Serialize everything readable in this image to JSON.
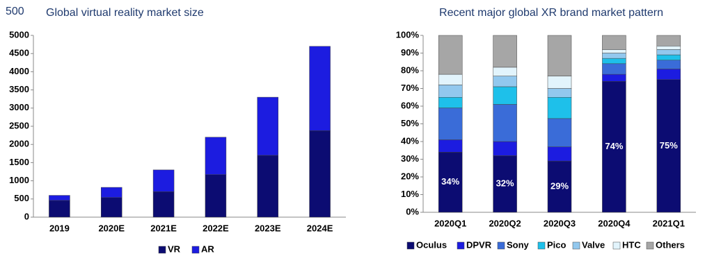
{
  "corner_label": "500",
  "chart_data": [
    {
      "type": "bar",
      "stacked": true,
      "title": "Global virtual reality market size",
      "categories": [
        "2019",
        "2020E",
        "2021E",
        "2022E",
        "2023E",
        "2024E"
      ],
      "series": [
        {
          "name": "VR",
          "color": "#0c0c72",
          "values": [
            460,
            540,
            700,
            1170,
            1700,
            2380
          ]
        },
        {
          "name": "AR",
          "color": "#1c1ce0",
          "values": [
            140,
            280,
            600,
            1030,
            1600,
            2320
          ]
        }
      ],
      "ylim": [
        0,
        5000
      ],
      "yticks": [
        0,
        500,
        1000,
        1500,
        2000,
        2500,
        3000,
        3500,
        4000,
        4500,
        5000
      ],
      "legend": "bottom"
    },
    {
      "type": "bar",
      "stacked": true,
      "title": "Recent major global XR brand market pattern",
      "categories": [
        "2020Q1",
        "2020Q2",
        "2020Q3",
        "2020Q4",
        "2021Q1"
      ],
      "series": [
        {
          "name": "Oculus",
          "color": "#0c0c72",
          "values": [
            34,
            32,
            29,
            74,
            75
          ],
          "value_labels": [
            "34%",
            "32%",
            "29%",
            "74%",
            "75%"
          ]
        },
        {
          "name": "DPVR",
          "color": "#1c1ce0",
          "values": [
            7,
            8,
            8,
            4,
            6
          ]
        },
        {
          "name": "Sony",
          "color": "#3a6cd8",
          "values": [
            18,
            21,
            16,
            6,
            5
          ]
        },
        {
          "name": "Pico",
          "color": "#1ec0ea",
          "values": [
            6,
            10,
            12,
            3,
            3
          ]
        },
        {
          "name": "Valve",
          "color": "#92c8ee",
          "values": [
            7,
            6,
            5,
            3,
            3
          ]
        },
        {
          "name": "HTC",
          "color": "#e2f4fc",
          "values": [
            6,
            5,
            7,
            2,
            2
          ]
        },
        {
          "name": "Others",
          "color": "#a6a6a6",
          "values": [
            22,
            18,
            23,
            8,
            6
          ]
        }
      ],
      "ylim": [
        0,
        100
      ],
      "yticks": [
        {
          "value": 0,
          "label": "0%"
        },
        {
          "value": 10,
          "label": "10%"
        },
        {
          "value": 20,
          "label": "20%"
        },
        {
          "value": 30,
          "label": "30%"
        },
        {
          "value": 40,
          "label": "40%"
        },
        {
          "value": 50,
          "label": "50%"
        },
        {
          "value": 60,
          "label": "60%"
        },
        {
          "value": 70,
          "label": "70%"
        },
        {
          "value": 80,
          "label": "80%"
        },
        {
          "value": 90,
          "label": "90%"
        },
        {
          "value": 100,
          "label": "100%"
        }
      ],
      "legend": "bottom"
    }
  ]
}
